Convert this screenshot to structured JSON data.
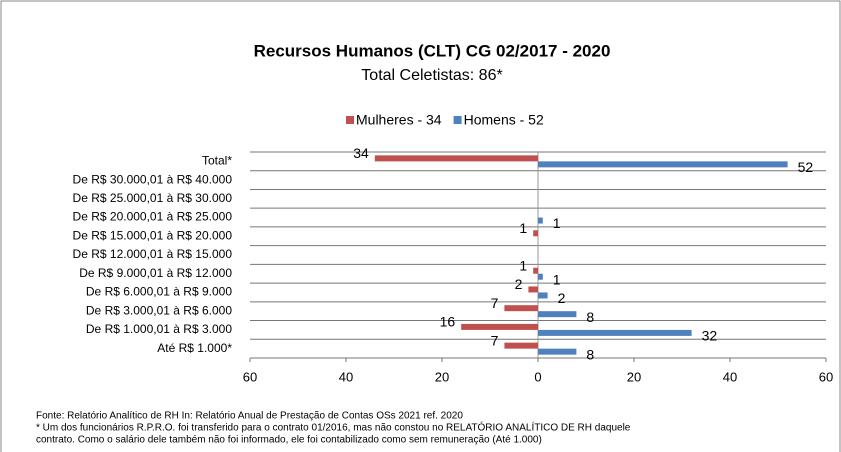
{
  "chart_data": {
    "type": "diverging-bar",
    "title": "Recursos Humanos (CLT) CG 02/2017 - 2020",
    "subtitle": "Total Celetistas: 86*",
    "categories": [
      "Total*",
      "De R$ 30.000,01 à R$ 40.000",
      "De R$ 25.000,01 à R$ 30.000",
      "De R$ 20.000,01 à R$ 25.000",
      "De R$ 15.000,01 à R$ 20.000",
      "De R$ 12.000,01 à R$ 15.000",
      "De R$ 9.000,01 à R$ 12.000",
      "De R$ 6.000,01 à R$ 9.000",
      "De R$ 3.000,01 à R$ 6.000",
      "De R$ 1.000,01 à R$ 3.000",
      "Até R$ 1.000*"
    ],
    "series": [
      {
        "name": "Mulheres - 34",
        "color": "#c0504d",
        "values": [
          -34,
          null,
          null,
          null,
          -1,
          null,
          -1,
          -2,
          -7,
          -16,
          -7
        ],
        "value_labels": [
          "34",
          null,
          null,
          null,
          "1",
          null,
          "1",
          "2",
          "7",
          "16",
          "7"
        ]
      },
      {
        "name": "Homens - 52",
        "color": "#4f81bd",
        "values": [
          52,
          null,
          null,
          1,
          null,
          null,
          1,
          2,
          8,
          32,
          8
        ]
      }
    ],
    "xlim": [
      -60,
      60
    ],
    "xticks": [
      {
        "value": -60,
        "label": "60"
      },
      {
        "value": -40,
        "label": "40"
      },
      {
        "value": -20,
        "label": "20"
      },
      0,
      20,
      40,
      60
    ],
    "legend": "top",
    "notes": [
      "Fonte: Relatório Analítico de RH In: Relatório Anual de Prestação de Contas OSs 2021 ref. 2020",
      "* Um dos funcionários R.P.R.O. foi transferido para o contrato 01/2016, mas não constou no RELATÓRIO ANALÍTICO DE RH daquele",
      "contrato. Como o salário dele também não foi informado, ele foi contabilizado como sem remuneração (Até 1.000)"
    ]
  }
}
